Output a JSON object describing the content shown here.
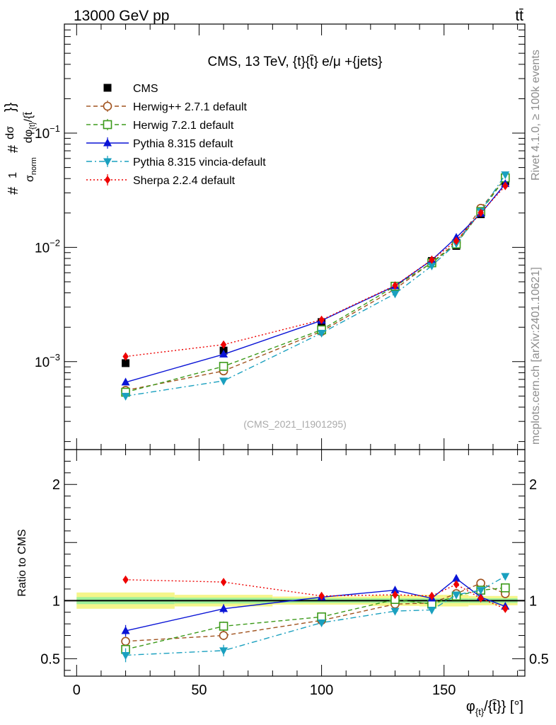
{
  "header": {
    "energy": "13000 GeV pp",
    "process": "tt̄"
  },
  "side": {
    "rivet": "Rivet 4.1.0, ≥ 100k events",
    "mcplots": "mcplots.cern.ch [arXiv:2401.10621]"
  },
  "title": "CMS, 13 TeV, {t}{t̄} e/μ +{jets}",
  "analysis_id": "(CMS_2021_I1901295)",
  "ylabel_main": "#1/σnorm #dσ/dφ{t}/{t̄}",
  "ylabel_ratio": "Ratio to CMS",
  "xlabel": "φ{t}/{t̄}} [°]",
  "colors": {
    "CMS": "#000000",
    "Herwig++": "#a0521e",
    "Herwig7": "#3c9a1a",
    "Pythia": "#0a14d6",
    "Vincia": "#1aa0bf",
    "Sherpa": "#ee0000"
  },
  "chart_data": [
    {
      "type": "line",
      "panel": "main",
      "title": "CMS, 13 TeV, {t}{t̄} e/μ +{jets}",
      "yscale": "log",
      "xlim": [
        -5,
        183
      ],
      "ylim": [
        0.00017,
        0.9
      ],
      "x": [
        20,
        60,
        100,
        130,
        145,
        155,
        165,
        175
      ],
      "yticks": [
        {
          "label": "10",
          "sup": "−3",
          "value": 0.001
        },
        {
          "label": "10",
          "sup": "−2",
          "value": 0.01
        },
        {
          "label": "10",
          "sup": "−1",
          "value": 0.1
        }
      ],
      "series": [
        {
          "name": "CMS",
          "key": "CMS",
          "marker": "square",
          "line": "none",
          "values": [
            0.00097,
            0.00125,
            0.00222,
            0.0045,
            0.0076,
            0.0103,
            0.0195,
            0.0378
          ]
        },
        {
          "name": "Herwig++ 2.7.1 default",
          "key": "Herwig++",
          "marker": "open-circle",
          "line": "dashed",
          "values": [
            0.00056,
            0.00083,
            0.00184,
            0.00432,
            0.0074,
            0.011,
            0.022,
            0.04
          ],
          "err": [
            0.03,
            0.04,
            0.02,
            0.02,
            0.02,
            0.02,
            0.02,
            0.02
          ]
        },
        {
          "name": "Herwig 7.2.1 default",
          "key": "Herwig7",
          "marker": "open-square",
          "line": "dashed",
          "values": [
            0.00054,
            0.00091,
            0.0019,
            0.00457,
            0.00733,
            0.0107,
            0.0206,
            0.0406
          ],
          "err": [
            0.03,
            0.04,
            0.02,
            0.02,
            0.02,
            0.02,
            0.02,
            0.02
          ]
        },
        {
          "name": "Pythia 8.315 default",
          "key": "Pythia",
          "marker": "triangle-up",
          "line": "solid",
          "values": [
            0.00066,
            0.00116,
            0.00229,
            0.0046,
            0.00775,
            0.0122,
            0.0198,
            0.036
          ],
          "err": [
            0.05,
            0.04,
            0.02,
            0.02,
            0.02,
            0.02,
            0.02,
            0.02
          ]
        },
        {
          "name": "Pythia 8.315 vincia-default",
          "key": "Vincia",
          "marker": "triangle-down",
          "line": "dashdot",
          "values": [
            0.0005,
            0.00068,
            0.00178,
            0.00393,
            0.0069,
            0.0108,
            0.0207,
            0.0433
          ],
          "err": [
            0.06,
            0.05,
            0.02,
            0.02,
            0.02,
            0.02,
            0.02,
            0.02
          ]
        },
        {
          "name": "Sherpa 2.2.4 default",
          "key": "Sherpa",
          "marker": "diamond",
          "line": "dotted",
          "values": [
            0.00111,
            0.00141,
            0.00232,
            0.00464,
            0.0078,
            0.0114,
            0.0201,
            0.0345
          ],
          "err": [
            0.02,
            0.02,
            0.02,
            0.02,
            0.02,
            0.02,
            0.02,
            0.02
          ]
        }
      ]
    },
    {
      "type": "line",
      "panel": "ratio",
      "ylabel": "Ratio to CMS",
      "xlabel": "φ{t}/{t̄}} [°]",
      "xlim": [
        -5,
        183
      ],
      "ylim": [
        0.35,
        2.3
      ],
      "x": [
        20,
        60,
        100,
        130,
        145,
        155,
        165,
        175
      ],
      "xticks": [
        0,
        50,
        100,
        150
      ],
      "yticks": [
        0.5,
        1,
        2
      ],
      "band": {
        "edges": [
          0,
          40,
          80,
          120,
          140,
          150,
          160,
          170,
          180
        ],
        "inner": [
          0.03,
          0.025,
          0.02,
          0.02,
          0.02,
          0.02,
          0.02,
          0.02
        ],
        "outer": [
          0.07,
          0.05,
          0.035,
          0.045,
          0.05,
          0.05,
          0.04,
          0.04
        ]
      },
      "series": [
        {
          "name": "Herwig++ 2.7.1 default",
          "key": "Herwig++",
          "marker": "open-circle",
          "line": "dashed",
          "values": [
            0.65,
            0.7,
            0.83,
            0.97,
            0.98,
            1.06,
            1.15,
            1.06
          ],
          "err": [
            0.03,
            0.04,
            0.02,
            0.02,
            0.02,
            0.02,
            0.02,
            0.02
          ]
        },
        {
          "name": "Herwig 7.2.1 default",
          "key": "Herwig7",
          "marker": "open-square",
          "line": "dashed",
          "values": [
            0.58,
            0.78,
            0.86,
            1.01,
            0.97,
            1.04,
            1.09,
            1.11
          ],
          "err": [
            0.03,
            0.04,
            0.02,
            0.02,
            0.02,
            0.02,
            0.02,
            0.02
          ]
        },
        {
          "name": "Pythia 8.315 default",
          "key": "Pythia",
          "marker": "triangle-up",
          "line": "solid",
          "values": [
            0.74,
            0.93,
            1.03,
            1.09,
            1.02,
            1.19,
            1.03,
            0.95
          ],
          "err": [
            0.05,
            0.04,
            0.02,
            0.02,
            0.02,
            0.02,
            0.02,
            0.02
          ]
        },
        {
          "name": "Pythia 8.315 vincia-default",
          "key": "Vincia",
          "marker": "triangle-down",
          "line": "dashdot",
          "values": [
            0.53,
            0.57,
            0.81,
            0.91,
            0.92,
            1.05,
            1.09,
            1.21
          ],
          "err": [
            0.06,
            0.05,
            0.02,
            0.02,
            0.02,
            0.02,
            0.02,
            0.02
          ]
        },
        {
          "name": "Sherpa 2.2.4 default",
          "key": "Sherpa",
          "marker": "diamond",
          "line": "dotted",
          "values": [
            1.18,
            1.16,
            1.04,
            1.05,
            1.04,
            1.14,
            1.02,
            0.93
          ],
          "err": [
            0.02,
            0.02,
            0.02,
            0.02,
            0.02,
            0.02,
            0.02,
            0.02
          ]
        }
      ]
    }
  ]
}
